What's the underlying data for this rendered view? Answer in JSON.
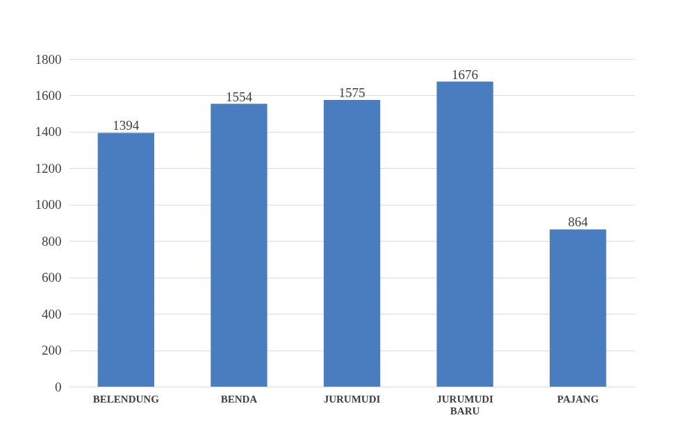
{
  "chart_data": {
    "type": "bar",
    "categories": [
      "BELENDUNG",
      "BENDA",
      "JURUMUDI",
      "JURUMUDI BARU",
      "PAJANG"
    ],
    "values": [
      1394,
      1554,
      1575,
      1676,
      864
    ],
    "color": "#4a7cc0",
    "ylim": [
      0,
      1800
    ],
    "yticks": [
      0,
      200,
      400,
      600,
      800,
      1000,
      1200,
      1400,
      1600,
      1800
    ],
    "grid": "y",
    "data_labels": true
  }
}
